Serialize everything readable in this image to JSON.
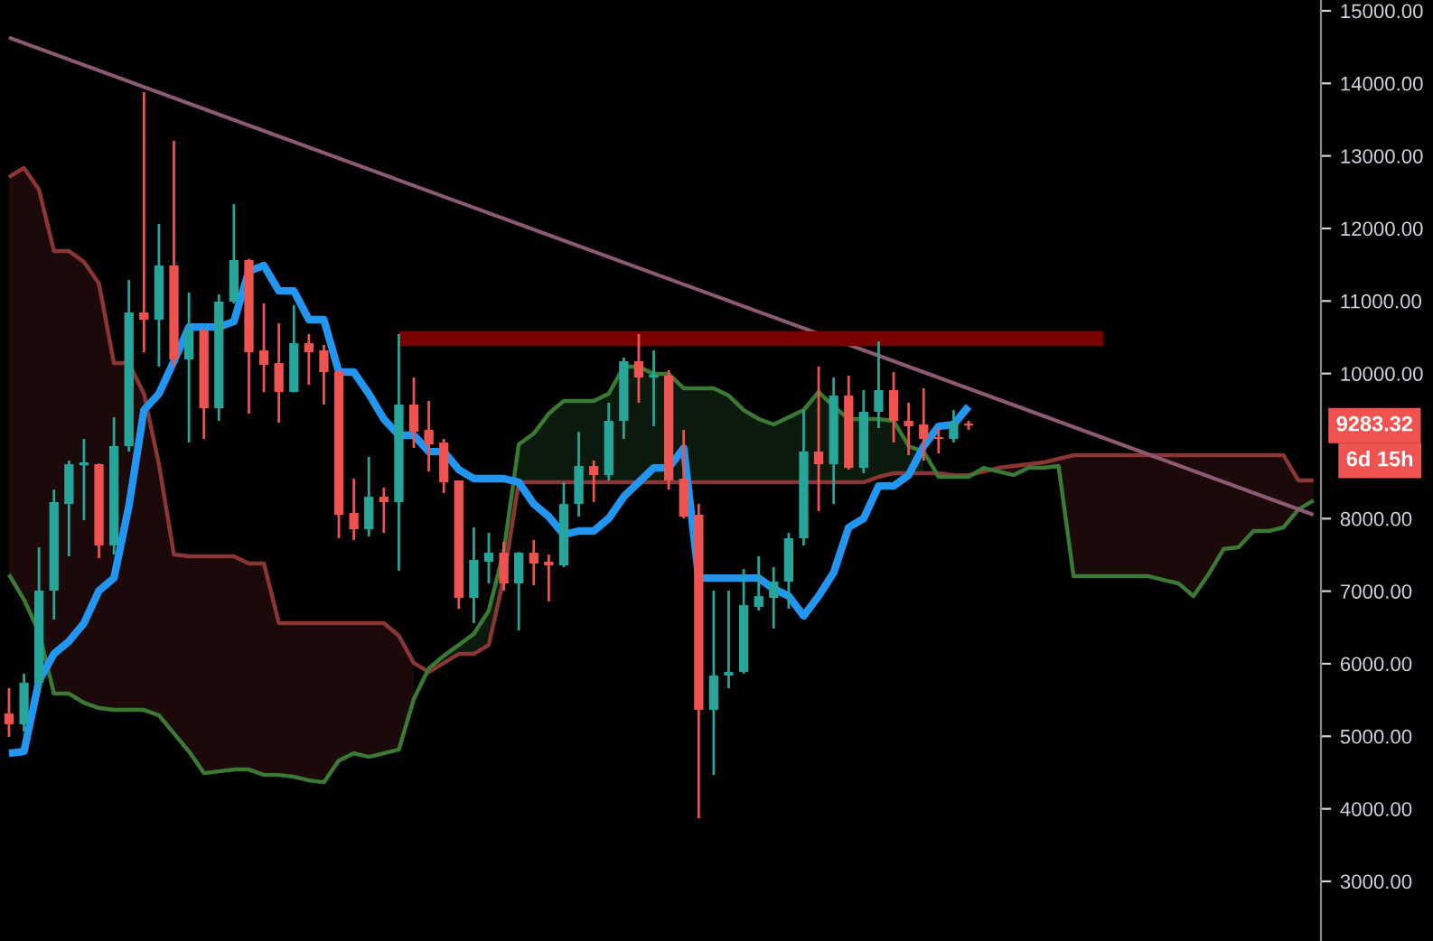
{
  "chart_data": {
    "type": "candlestick",
    "categories": [
      null,
      null,
      null,
      null,
      null,
      null,
      null,
      null,
      null,
      null,
      null,
      null,
      null,
      null,
      null,
      null,
      null,
      null,
      null,
      null,
      null,
      null,
      null,
      null,
      null,
      null,
      null,
      null,
      null,
      null,
      null,
      null,
      null,
      null,
      null,
      null,
      null,
      null,
      null,
      null,
      null,
      null,
      null,
      null,
      null,
      null,
      null,
      null,
      null,
      null,
      null,
      null,
      null,
      null,
      null,
      null,
      null,
      null,
      null,
      null,
      null,
      null,
      null,
      null,
      null,
      null,
      null,
      null,
      null,
      null,
      null,
      null,
      null,
      null,
      null,
      null,
      null,
      null,
      null,
      null,
      null,
      null,
      null,
      null,
      null,
      null,
      null,
      null
    ],
    "ohlc": [
      [
        5314,
        5663,
        4990,
        5165
      ],
      [
        5165,
        5862,
        5065,
        5737
      ],
      [
        5737,
        7605,
        5613,
        7007
      ],
      [
        7007,
        8401,
        6609,
        8227
      ],
      [
        8202,
        8800,
        7480,
        8750
      ],
      [
        8750,
        9099,
        7978,
        8760
      ],
      [
        8750,
        8760,
        7455,
        7630
      ],
      [
        7630,
        9397,
        7505,
        8999
      ],
      [
        8999,
        11290,
        8924,
        10842
      ],
      [
        10842,
        13880,
        10294,
        10742
      ],
      [
        10742,
        12062,
        10095,
        11489
      ],
      [
        11489,
        13207,
        10095,
        10194
      ],
      [
        10194,
        11116,
        9049,
        10593
      ],
      [
        10593,
        10617,
        9099,
        9522
      ],
      [
        9522,
        11091,
        9348,
        10991
      ],
      [
        10991,
        12336,
        10966,
        11564
      ],
      [
        11564,
        11580,
        9447,
        10294
      ],
      [
        10319,
        10966,
        9746,
        10120
      ],
      [
        10145,
        10692,
        9323,
        9746
      ],
      [
        9746,
        10941,
        9740,
        10418
      ],
      [
        10418,
        10543,
        9846,
        10294
      ],
      [
        10319,
        10394,
        9572,
        10020
      ],
      [
        10020,
        10045,
        7729,
        8053
      ],
      [
        8078,
        8551,
        7704,
        7854
      ],
      [
        7854,
        8850,
        7754,
        8302
      ],
      [
        8302,
        8426,
        7804,
        8227
      ],
      [
        8227,
        10543,
        7281,
        9572
      ],
      [
        9572,
        9945,
        8974,
        9198
      ],
      [
        9223,
        9622,
        8650,
        9024
      ],
      [
        9049,
        9099,
        8352,
        8501
      ],
      [
        8526,
        8526,
        6758,
        6908
      ],
      [
        6908,
        7879,
        6559,
        7431
      ],
      [
        7406,
        7804,
        7107,
        7530
      ],
      [
        7530,
        7680,
        7007,
        7107
      ],
      [
        7107,
        7540,
        6459,
        7530
      ],
      [
        7530,
        7705,
        7082,
        7381
      ],
      [
        7406,
        7505,
        6858,
        7356
      ],
      [
        7356,
        8501,
        7331,
        8202
      ],
      [
        8202,
        9198,
        8028,
        8725
      ],
      [
        8725,
        8800,
        8227,
        8600
      ],
      [
        8600,
        9597,
        8526,
        9348
      ],
      [
        9348,
        10219,
        9099,
        10169
      ],
      [
        10169,
        10543,
        9597,
        9945
      ],
      [
        9960,
        10319,
        9273,
        9970
      ],
      [
        9970,
        10045,
        8401,
        8526
      ],
      [
        8551,
        9223,
        8003,
        8028
      ],
      [
        8053,
        8202,
        3870,
        5364
      ],
      [
        5364,
        7007,
        4467,
        5837
      ],
      [
        5837,
        7007,
        5662,
        5887
      ],
      [
        5887,
        7306,
        5862,
        6808
      ],
      [
        6783,
        7480,
        6733,
        6932
      ],
      [
        6908,
        7331,
        6484,
        7132
      ],
      [
        7132,
        7804,
        6758,
        7729
      ],
      [
        7729,
        9497,
        7630,
        8924
      ],
      [
        8924,
        10095,
        8103,
        8750
      ],
      [
        8750,
        9945,
        8202,
        9696
      ],
      [
        9696,
        9970,
        8675,
        8700
      ],
      [
        8700,
        9771,
        8626,
        9472
      ],
      [
        9472,
        10443,
        9248,
        9771
      ],
      [
        9771,
        10020,
        9049,
        9348
      ],
      [
        9348,
        9597,
        8874,
        9273
      ],
      [
        9298,
        9796,
        8800,
        9099
      ],
      [
        9124,
        9248,
        8899,
        9099
      ],
      [
        9099,
        9497,
        9049,
        9323
      ],
      [
        9310,
        9348,
        9223,
        9283.32
      ],
      null,
      null,
      null,
      null,
      null,
      null,
      null,
      null,
      null,
      null,
      null,
      null,
      null,
      null,
      null,
      null,
      null,
      null,
      null,
      null,
      null,
      null,
      null
    ],
    "series": [
      {
        "type": "line",
        "color": "#8b3535",
        "values": [
          12709,
          12834,
          12535,
          11688,
          11688,
          11539,
          11240,
          10145,
          10145,
          9721,
          8750,
          7505,
          7480,
          7480,
          7480,
          7480,
          7381,
          7381,
          6559,
          6559,
          6559,
          6559,
          6559,
          6559,
          6559,
          6559,
          6385,
          6011,
          5887,
          6011,
          6136,
          6136,
          6260,
          7181,
          8501,
          8501,
          8501,
          8501,
          8501,
          8501,
          8501,
          8501,
          8501,
          8501,
          8501,
          8501,
          8501,
          8501,
          8501,
          8501,
          8501,
          8501,
          8501,
          8501,
          8501,
          8501,
          8501,
          8501,
          8576,
          8626,
          8626,
          8626,
          8626,
          8600,
          8600,
          8650,
          8700,
          8725,
          8750,
          8775,
          8825,
          8874,
          8874,
          8874,
          8874,
          8874,
          8874,
          8874,
          8874,
          8874,
          8874,
          8874,
          8874,
          8874,
          8874,
          8874,
          8526,
          8526
        ],
        "lower": [
          7231,
          6883,
          6434,
          5588,
          5588,
          5463,
          5389,
          5364,
          5364,
          5364,
          5289,
          5040,
          4791,
          4492,
          4517,
          4542,
          4542,
          4467,
          4467,
          4442,
          4392,
          4367,
          4666,
          4766,
          4716,
          4766,
          4816,
          5513,
          null,
          null,
          null,
          null,
          null,
          null,
          null,
          null,
          null,
          null,
          null,
          null,
          null,
          null,
          null,
          null,
          null,
          null,
          null,
          null,
          null,
          null,
          null,
          null,
          null,
          null,
          null,
          null,
          null,
          null,
          null,
          null,
          null,
          null,
          8576,
          8576,
          8576,
          null,
          8650,
          8600,
          8700,
          8700,
          8725,
          7206,
          7206,
          7206,
          7206,
          7206,
          7206,
          7156,
          7107,
          6932,
          7231,
          7580,
          7605,
          7829,
          7829,
          7879,
          8127,
          8252
        ],
        "upper": [
          12709,
          12834,
          12535,
          11688,
          11688,
          11539,
          11240,
          10145,
          10145,
          9721,
          8750,
          7505,
          7480,
          7480,
          7480,
          7480,
          7381,
          7381,
          6559,
          6559,
          6559,
          6559,
          6559,
          6559,
          6559,
          6559,
          6385,
          6011,
          null,
          null,
          null,
          null,
          null,
          null,
          null,
          null,
          null,
          null,
          null,
          null,
          null,
          null,
          null,
          null,
          null,
          null,
          null,
          null,
          null,
          null,
          null,
          null,
          null,
          null,
          null,
          null,
          null,
          null,
          null,
          null,
          null,
          null,
          8626,
          8600,
          8600,
          null,
          8700,
          8725,
          8750,
          8775,
          8825,
          8874,
          8874,
          8874,
          8874,
          8874,
          8874,
          8874,
          8874,
          8874,
          8874,
          8874,
          8874,
          8874,
          8874,
          8874,
          8526,
          8526
        ]
      },
      {
        "type": "line",
        "color": "#3a7a32",
        "values": [
          7231,
          6883,
          6434,
          5588,
          5588,
          5463,
          5389,
          5364,
          5364,
          5364,
          5289,
          5040,
          4791,
          4492,
          4517,
          4542,
          4542,
          4467,
          4467,
          4442,
          4392,
          4367,
          4666,
          4766,
          4716,
          4766,
          4816,
          5513,
          5936,
          6110,
          6260,
          6410,
          6733,
          7555,
          9024,
          9173,
          9447,
          9622,
          9622,
          9622,
          9721,
          10095,
          10095,
          9995,
          9995,
          9796,
          9796,
          9796,
          9696,
          9497,
          9373,
          9298,
          9398,
          9497,
          9746,
          9547,
          9373,
          9373,
          9373,
          9348,
          9000,
          8924,
          8576,
          8576,
          8576,
          8700,
          8650,
          8600,
          8700,
          8700,
          8725,
          7206,
          7206,
          7206,
          7206,
          7206,
          7206,
          7156,
          7107,
          6932,
          7231,
          7580,
          7605,
          7829,
          7829,
          7879,
          8127,
          8252
        ],
        "lower": [
          null,
          null,
          null,
          null,
          null,
          null,
          null,
          null,
          null,
          null,
          null,
          null,
          null,
          null,
          null,
          null,
          null,
          null,
          null,
          null,
          null,
          null,
          null,
          null,
          null,
          null,
          null,
          null,
          5887,
          6011,
          6136,
          6136,
          6260,
          7181,
          8501,
          8501,
          8501,
          8501,
          8501,
          8501,
          8501,
          8501,
          8501,
          8501,
          8501,
          8501,
          8501,
          8501,
          8501,
          8501,
          8501,
          8501,
          8501,
          8501,
          8501,
          8501,
          8501,
          8501,
          8576,
          8626,
          8626,
          8626,
          null,
          null,
          null,
          null,
          null,
          null,
          null,
          null,
          null,
          null,
          null,
          null,
          null,
          null,
          null,
          null,
          null,
          null,
          null,
          null,
          null,
          null,
          null,
          null,
          null,
          null
        ],
        "upper": [
          null,
          null,
          null,
          null,
          null,
          null,
          null,
          null,
          null,
          null,
          null,
          null,
          null,
          null,
          null,
          null,
          null,
          null,
          null,
          null,
          null,
          null,
          null,
          null,
          null,
          null,
          null,
          null,
          5936,
          6110,
          6260,
          6410,
          6733,
          7555,
          9024,
          9173,
          9447,
          9622,
          9622,
          9622,
          9721,
          10095,
          10095,
          9995,
          9995,
          9796,
          9796,
          9796,
          9696,
          9497,
          9373,
          9298,
          9398,
          9497,
          9746,
          9547,
          9373,
          9373,
          9373,
          9348,
          9000,
          8924,
          null,
          null,
          null,
          null,
          null,
          null,
          null,
          null,
          null,
          null,
          null,
          null,
          null,
          null,
          null,
          null,
          null,
          null,
          null,
          null,
          null,
          null,
          null,
          null,
          null,
          null
        ]
      },
      {
        "type": "line",
        "color": "#8c5a72",
        "values": [
          14631,
          null,
          null,
          null,
          null,
          null,
          null,
          null,
          null,
          null,
          null,
          null,
          null,
          null,
          null,
          null,
          null,
          null,
          null,
          null,
          null,
          null,
          null,
          null,
          null,
          null,
          null,
          null,
          null,
          null,
          null,
          null,
          null,
          null,
          null,
          null,
          null,
          null,
          null,
          null,
          null,
          null,
          null,
          null,
          null,
          null,
          null,
          null,
          null,
          null,
          null,
          null,
          null,
          null,
          null,
          null,
          null,
          null,
          null,
          null,
          null,
          null,
          null,
          null,
          null,
          null,
          null,
          null,
          null,
          null,
          null,
          null,
          null,
          null,
          null,
          null,
          null,
          null,
          null,
          null,
          null,
          null,
          null,
          null,
          null,
          null,
          null,
          8053
        ]
      },
      {
        "type": "line",
        "color": "#7a0000",
        "values": [
          null,
          null,
          null,
          null,
          null,
          null,
          null,
          null,
          null,
          null,
          null,
          null,
          null,
          null,
          null,
          null,
          null,
          null,
          null,
          null,
          null,
          null,
          null,
          null,
          null,
          null,
          10481,
          null,
          null,
          null,
          null,
          null,
          null,
          null,
          null,
          null,
          null,
          null,
          null,
          null,
          null,
          null,
          null,
          null,
          null,
          null,
          null,
          null,
          null,
          null,
          null,
          null,
          null,
          null,
          null,
          null,
          null,
          null,
          null,
          null,
          null,
          null,
          null,
          null,
          null,
          null,
          null,
          null,
          null,
          null,
          null,
          null,
          null,
          10481,
          null,
          null,
          null,
          null,
          null,
          null,
          null,
          null,
          null,
          null,
          null,
          null,
          null,
          null
        ]
      },
      {
        "type": "line",
        "color": "#2196f3",
        "values": [
          4766,
          4791,
          5762,
          6136,
          6310,
          6559,
          7007,
          7181,
          8177,
          9497,
          9721,
          10169,
          10642,
          10642,
          10642,
          10717,
          11414,
          11489,
          11140,
          11140,
          10742,
          10742,
          10020,
          10020,
          9721,
          9373,
          9149,
          9149,
          8924,
          8924,
          8675,
          8551,
          8551,
          8551,
          8501,
          8202,
          8028,
          7779,
          7829,
          7829,
          8003,
          8302,
          8501,
          8700,
          8700,
          8974,
          7181,
          7181,
          7181,
          7181,
          7181,
          7032,
          6932,
          6658,
          6932,
          7256,
          7879,
          8003,
          8451,
          8451,
          8600,
          8999,
          9273,
          9298,
          9547,
          null,
          null,
          null,
          null,
          null,
          null,
          null,
          null,
          null,
          null,
          null,
          null,
          null,
          null,
          null,
          null,
          null,
          null,
          null,
          null,
          null,
          null,
          null
        ]
      }
    ],
    "ylim": [
      2178,
      15149
    ],
    "yticks": [
      {
        "value": 3000,
        "label": "3000.00"
      },
      {
        "value": 4000,
        "label": "4000.00"
      },
      {
        "value": 5000,
        "label": "5000.00"
      },
      {
        "value": 6000,
        "label": "6000.00"
      },
      {
        "value": 7000,
        "label": "7000.00"
      },
      {
        "value": 8000,
        "label": "8000.00"
      },
      {
        "value": 10000,
        "label": "10000.00"
      },
      {
        "value": 11000,
        "label": "11000.00"
      },
      {
        "value": 12000,
        "label": "12000.00"
      },
      {
        "value": 13000,
        "label": "13000.00"
      },
      {
        "value": 14000,
        "label": "14000.00"
      },
      {
        "value": 15000,
        "label": "15000.00"
      }
    ],
    "annotations": [
      "9283.32",
      "6d 15h"
    ],
    "grid": false,
    "legend": false
  }
}
